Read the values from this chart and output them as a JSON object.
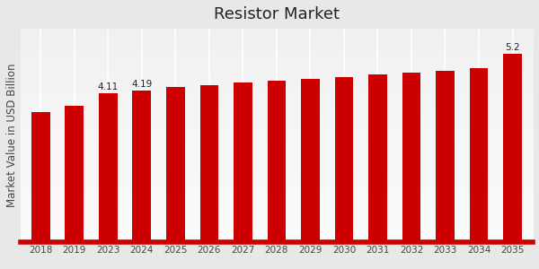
{
  "title": "Resistor Market",
  "ylabel": "Market Value in USD Billion",
  "categories": [
    "2018",
    "2019",
    "2023",
    "2024",
    "2025",
    "2026",
    "2027",
    "2028",
    "2029",
    "2030",
    "2031",
    "2032",
    "2033",
    "2034",
    "2035"
  ],
  "values": [
    3.6,
    3.78,
    4.11,
    4.19,
    4.28,
    4.35,
    4.42,
    4.46,
    4.51,
    4.57,
    4.63,
    4.68,
    4.74,
    4.8,
    5.2
  ],
  "bar_color": "#cc0000",
  "background_color_top": "#e8e8e8",
  "background_color_bottom": "#f8f8f8",
  "annotations": {
    "2023": "4.11",
    "2024": "4.19",
    "2035": "5.2"
  },
  "ylim": [
    0.0,
    5.9
  ],
  "title_fontsize": 13,
  "ylabel_fontsize": 8.5,
  "tick_fontsize": 7.5,
  "annotation_fontsize": 7.5,
  "bar_width": 0.55,
  "bottom_bar_color": "#cc0000",
  "bottom_bar_height": 8
}
